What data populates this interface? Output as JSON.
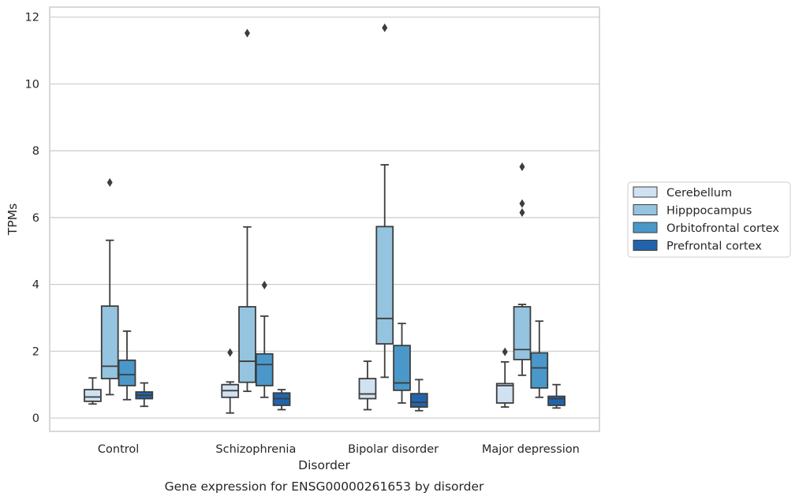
{
  "chart_data": {
    "type": "box",
    "xlabel": "Disorder",
    "ylabel": "TPMs",
    "caption": "Gene expression for ENSG00000261653 by disorder",
    "categories": [
      "Control",
      "Schizophrenia",
      "Bipolar disorder",
      "Major depression"
    ],
    "ylim": [
      -0.4,
      12.3
    ],
    "yticks": [
      0,
      2,
      4,
      6,
      8,
      10,
      12
    ],
    "grid": "horizontal",
    "legend_position": "right",
    "series": [
      {
        "name": "Cerebellum",
        "color": "#d0e1f2",
        "boxes": [
          {
            "whislo": 0.42,
            "q1": 0.5,
            "med": 0.63,
            "q3": 0.85,
            "whishi": 1.2,
            "fliers": []
          },
          {
            "whislo": 0.15,
            "q1": 0.62,
            "med": 0.82,
            "q3": 1.0,
            "whishi": 1.08,
            "fliers": [
              1.96
            ]
          },
          {
            "whislo": 0.25,
            "q1": 0.58,
            "med": 0.72,
            "q3": 1.18,
            "whishi": 1.7,
            "fliers": []
          },
          {
            "whislo": 0.33,
            "q1": 0.45,
            "med": 0.97,
            "q3": 1.03,
            "whishi": 1.68,
            "fliers": [
              1.98
            ]
          }
        ]
      },
      {
        "name": "Hipppocampus",
        "color": "#94c4df",
        "boxes": [
          {
            "whislo": 0.7,
            "q1": 1.18,
            "med": 1.55,
            "q3": 3.35,
            "whishi": 5.32,
            "fliers": [
              7.05
            ]
          },
          {
            "whislo": 0.8,
            "q1": 1.07,
            "med": 1.7,
            "q3": 3.33,
            "whishi": 5.72,
            "fliers": [
              11.52
            ]
          },
          {
            "whislo": 1.22,
            "q1": 2.22,
            "med": 2.98,
            "q3": 5.73,
            "whishi": 7.58,
            "fliers": [
              11.68
            ]
          },
          {
            "whislo": 1.28,
            "q1": 1.75,
            "med": 2.05,
            "q3": 3.33,
            "whishi": 3.4,
            "fliers": [
              6.15,
              6.42,
              7.52
            ]
          }
        ]
      },
      {
        "name": "Orbitofrontal cortex",
        "color": "#4a98c9",
        "boxes": [
          {
            "whislo": 0.55,
            "q1": 0.97,
            "med": 1.3,
            "q3": 1.73,
            "whishi": 2.6,
            "fliers": []
          },
          {
            "whislo": 0.62,
            "q1": 0.97,
            "med": 1.6,
            "q3": 1.92,
            "whishi": 3.05,
            "fliers": [
              3.98
            ]
          },
          {
            "whislo": 0.45,
            "q1": 0.83,
            "med": 1.05,
            "q3": 2.17,
            "whishi": 2.83,
            "fliers": []
          },
          {
            "whislo": 0.62,
            "q1": 0.9,
            "med": 1.5,
            "q3": 1.95,
            "whishi": 2.9,
            "fliers": []
          }
        ]
      },
      {
        "name": "Prefrontal cortex",
        "color": "#2164ab",
        "boxes": [
          {
            "whislo": 0.35,
            "q1": 0.58,
            "med": 0.68,
            "q3": 0.78,
            "whishi": 1.05,
            "fliers": []
          },
          {
            "whislo": 0.25,
            "q1": 0.38,
            "med": 0.58,
            "q3": 0.75,
            "whishi": 0.85,
            "fliers": []
          },
          {
            "whislo": 0.22,
            "q1": 0.33,
            "med": 0.47,
            "q3": 0.73,
            "whishi": 1.15,
            "fliers": []
          },
          {
            "whislo": 0.3,
            "q1": 0.38,
            "med": 0.58,
            "q3": 0.65,
            "whishi": 1.0,
            "fliers": []
          }
        ]
      }
    ]
  }
}
